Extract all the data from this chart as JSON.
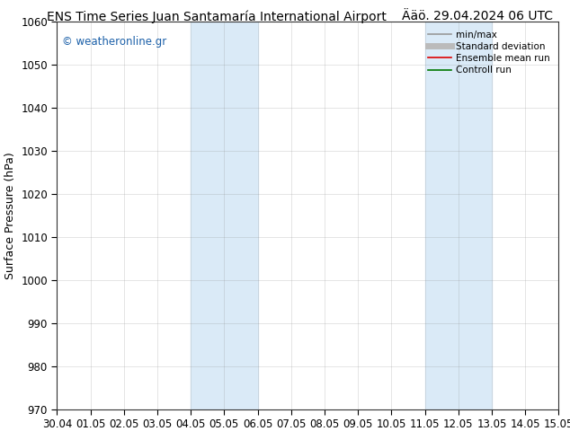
{
  "title_left": "ENS Time Series Juan Santamaría International Airport",
  "title_right": "Ääö. 29.04.2024 06 UTC",
  "ylabel": "Surface Pressure (hPa)",
  "ylim": [
    970,
    1060
  ],
  "yticks": [
    970,
    980,
    990,
    1000,
    1010,
    1020,
    1030,
    1040,
    1050,
    1060
  ],
  "xstart": "2024-04-30",
  "xend": "2024-05-15",
  "xtick_labels": [
    "30.04",
    "01.05",
    "02.05",
    "03.05",
    "04.05",
    "05.05",
    "06.05",
    "07.05",
    "08.05",
    "09.05",
    "10.05",
    "11.05",
    "12.05",
    "13.05",
    "14.05",
    "15.05"
  ],
  "shaded_bands": [
    {
      "start": "2024-05-04",
      "end": "2024-05-05"
    },
    {
      "start": "2024-05-05",
      "end": "2024-05-06"
    },
    {
      "start": "2024-05-11",
      "end": "2024-05-12"
    },
    {
      "start": "2024-05-12",
      "end": "2024-05-13"
    }
  ],
  "shade_color": "#daeaf7",
  "watermark": "© weatheronline.gr",
  "watermark_color": "#1a5fa8",
  "background_color": "#ffffff",
  "plot_bg_color": "#ffffff",
  "legend_items": [
    {
      "label": "min/max",
      "color": "#999999",
      "lw": 1.2,
      "style": "-"
    },
    {
      "label": "Standard deviation",
      "color": "#bbbbbb",
      "lw": 5,
      "style": "-"
    },
    {
      "label": "Ensemble mean run",
      "color": "#dd0000",
      "lw": 1.2,
      "style": "-"
    },
    {
      "label": "Controll run",
      "color": "#007700",
      "lw": 1.2,
      "style": "-"
    }
  ],
  "grid_color": "#888888",
  "grid_alpha": 0.3,
  "title_fontsize": 10,
  "axis_label_fontsize": 9,
  "tick_fontsize": 8.5
}
